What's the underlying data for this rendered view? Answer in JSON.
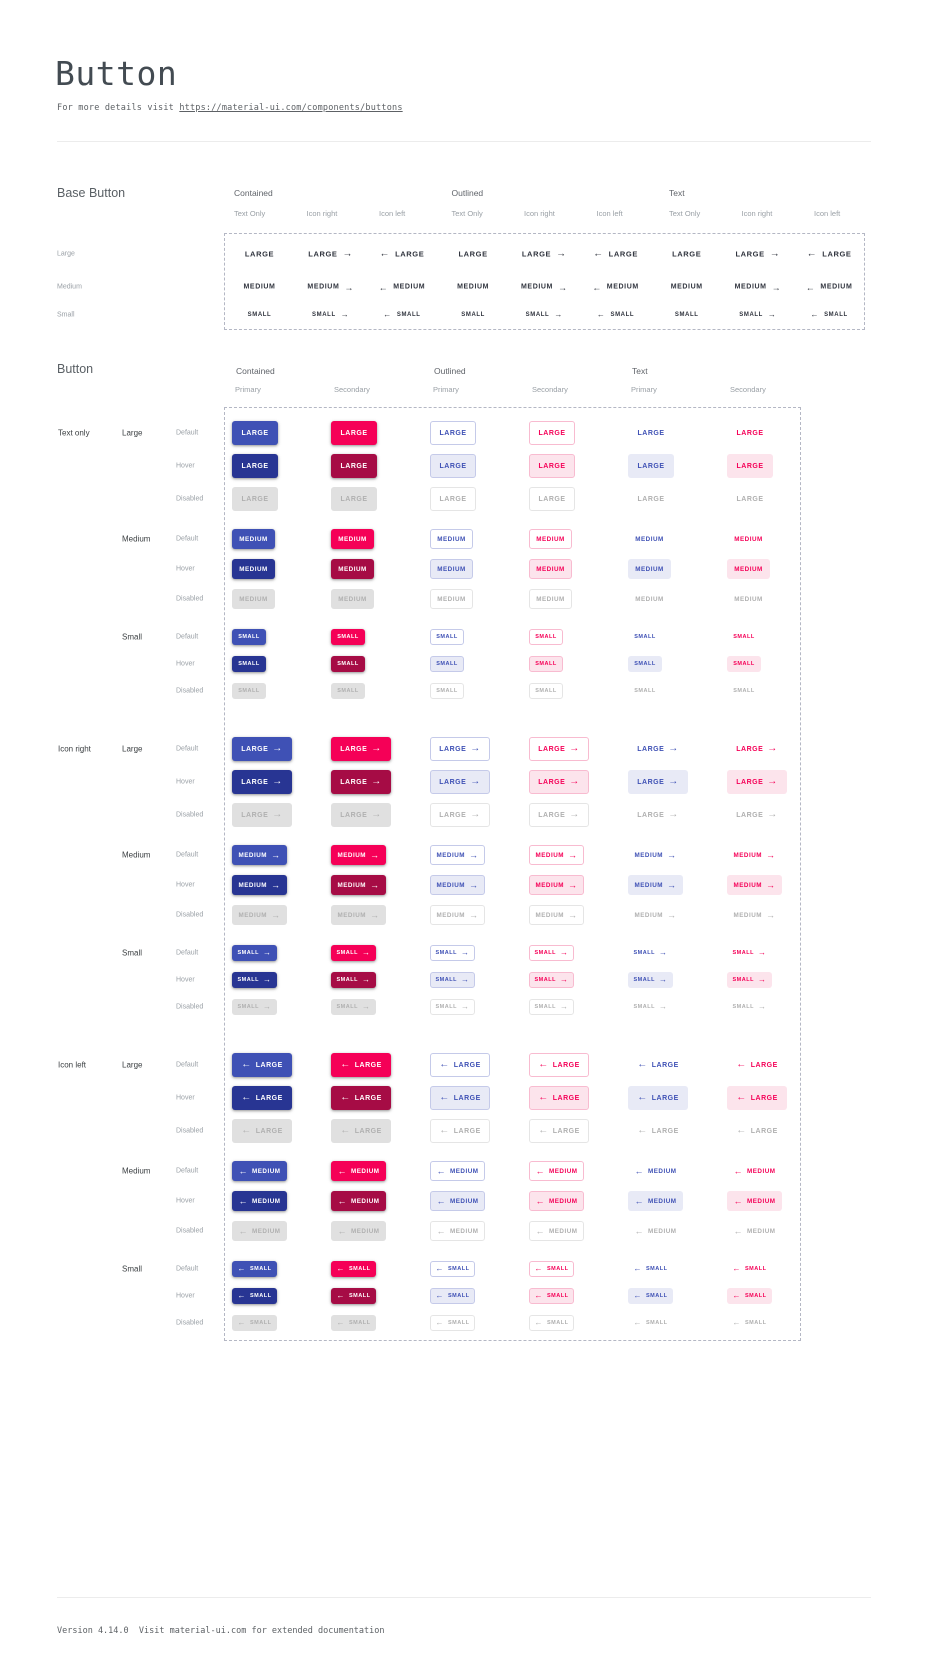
{
  "header": {
    "title": "Button",
    "subtitle_prefix": "For more details visit ",
    "link_text": "https://material-ui.com/components/buttons"
  },
  "footer": {
    "text": "Version 4.14.0  Visit material-ui.com for extended documentation"
  },
  "base_section": {
    "heading": "Base Button",
    "column_groups": [
      {
        "label": "Contained"
      },
      {
        "label": "Outlined"
      },
      {
        "label": "Text"
      }
    ],
    "subcolumns": [
      "Text Only",
      "Icon right",
      "Icon left"
    ],
    "sizes": [
      {
        "label": "Large",
        "button_text": "LARGE"
      },
      {
        "label": "Medium",
        "button_text": "MEDIUM"
      },
      {
        "label": "Small",
        "button_text": "SMALL"
      }
    ]
  },
  "button_section": {
    "heading": "Button",
    "column_groups": [
      {
        "label": "Contained",
        "variant": "contained"
      },
      {
        "label": "Outlined",
        "variant": "outlined"
      },
      {
        "label": "Text",
        "variant": "text"
      }
    ],
    "subcolumns": [
      {
        "label": "Primary",
        "palette": "primary"
      },
      {
        "label": "Secondary",
        "palette": "secondary"
      }
    ],
    "row_groups": [
      {
        "label": "Text only",
        "icon": "none"
      },
      {
        "label": "Icon right",
        "icon": "right"
      },
      {
        "label": "Icon left",
        "icon": "left"
      }
    ],
    "sizes": [
      {
        "label": "Large",
        "button_text": "LARGE"
      },
      {
        "label": "Medium",
        "button_text": "MEDIUM"
      },
      {
        "label": "Small",
        "button_text": "SMALL"
      }
    ],
    "states": [
      "Default",
      "Hover",
      "Disabled"
    ]
  },
  "icons": {
    "arrow_right": "→",
    "arrow_left": "←"
  },
  "colors": {
    "primary": "#3f51b5",
    "primary_hover": "#283593",
    "primary_light": "#e8eaf6",
    "primary_border": "#c5cae9",
    "secondary": "#f50057",
    "secondary_hover": "#a60c45",
    "secondary_light": "#fce4ec",
    "secondary_border": "#f8bbd0",
    "disabled_bg": "#e0e0e0",
    "disabled_text": "#b0b0b0",
    "disabled_border": "#e5e5e5"
  }
}
